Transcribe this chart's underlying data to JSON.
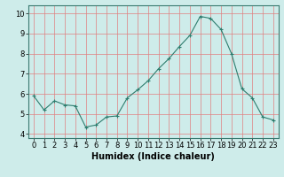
{
  "x": [
    0,
    1,
    2,
    3,
    4,
    5,
    6,
    7,
    8,
    9,
    10,
    11,
    12,
    13,
    14,
    15,
    16,
    17,
    18,
    19,
    20,
    21,
    22,
    23
  ],
  "y": [
    5.9,
    5.2,
    5.65,
    5.45,
    5.4,
    4.35,
    4.45,
    4.85,
    4.9,
    5.8,
    6.2,
    6.65,
    7.25,
    7.75,
    8.35,
    8.9,
    9.85,
    9.75,
    9.2,
    8.0,
    6.25,
    5.8,
    4.85,
    4.7
  ],
  "line_color": "#2e7d6e",
  "marker": "+",
  "marker_size": 3,
  "marker_linewidth": 0.8,
  "line_width": 0.8,
  "bg_color": "#ceecea",
  "grid_color": "#e08080",
  "xlabel": "Humidex (Indice chaleur)",
  "ylim": [
    3.8,
    10.4
  ],
  "xlim": [
    -0.5,
    23.5
  ],
  "yticks": [
    4,
    5,
    6,
    7,
    8,
    9,
    10
  ],
  "xticks": [
    0,
    1,
    2,
    3,
    4,
    5,
    6,
    7,
    8,
    9,
    10,
    11,
    12,
    13,
    14,
    15,
    16,
    17,
    18,
    19,
    20,
    21,
    22,
    23
  ],
  "font_size_label": 7,
  "font_size_tick": 6
}
